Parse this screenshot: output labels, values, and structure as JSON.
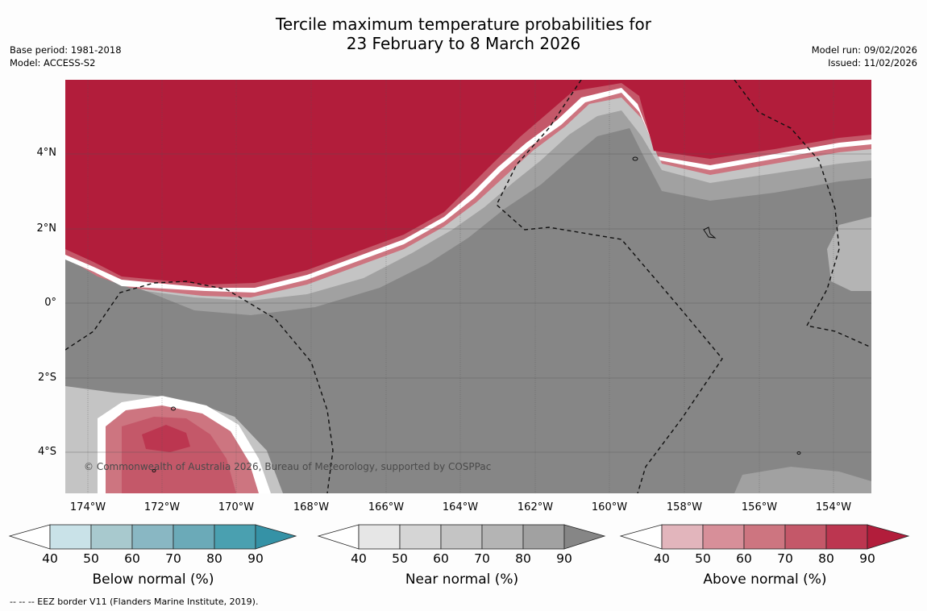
{
  "title": {
    "line1": "Tercile maximum temperature probabilities for",
    "line2": "23 February to 8 March 2026"
  },
  "meta_left": {
    "base_period": "Base period: 1981-2018",
    "model": "Model: ACCESS-S2"
  },
  "meta_right": {
    "model_run": "Model run: 09/02/2026",
    "issued": "Issued: 11/02/2026"
  },
  "map": {
    "lat_labels": [
      "4°N",
      "2°N",
      "0°",
      "2°S",
      "4°S"
    ],
    "lon_labels": [
      "174°W",
      "172°W",
      "170°W",
      "168°W",
      "166°W",
      "164°W",
      "162°W",
      "160°W",
      "158°W",
      "156°W",
      "154°W"
    ],
    "copyright": "© Commonwealth of Australia 2026, Bureau of Meteorology, supported by COSPPac",
    "colors": {
      "near_normal_90": "#868686",
      "above_normal_90": "#b21d3b",
      "grid": "#555555"
    }
  },
  "colorbars": [
    {
      "name": "below",
      "label": "Below normal (%)",
      "ticks": [
        "40",
        "50",
        "60",
        "70",
        "80",
        "90"
      ],
      "colors": [
        "#ffffff",
        "#c9e2e8",
        "#a8c9ce",
        "#89b7c3",
        "#6baab8",
        "#4aa0b0",
        "#3592a6"
      ]
    },
    {
      "name": "near",
      "label": "Near normal (%)",
      "ticks": [
        "40",
        "50",
        "60",
        "70",
        "80",
        "90"
      ],
      "colors": [
        "#ffffff",
        "#e6e6e6",
        "#d5d5d5",
        "#c4c4c4",
        "#b4b4b4",
        "#a1a1a1",
        "#868686"
      ]
    },
    {
      "name": "above",
      "label": "Above normal (%)",
      "ticks": [
        "40",
        "50",
        "60",
        "70",
        "80",
        "90"
      ],
      "colors": [
        "#ffffff",
        "#e2b5bc",
        "#d78f99",
        "#cd7580",
        "#c45869",
        "#bc3650",
        "#b21d3b"
      ]
    }
  ],
  "footnote": "--  --  -- EEZ border V11 (Flanders Marine Institute, 2019)."
}
